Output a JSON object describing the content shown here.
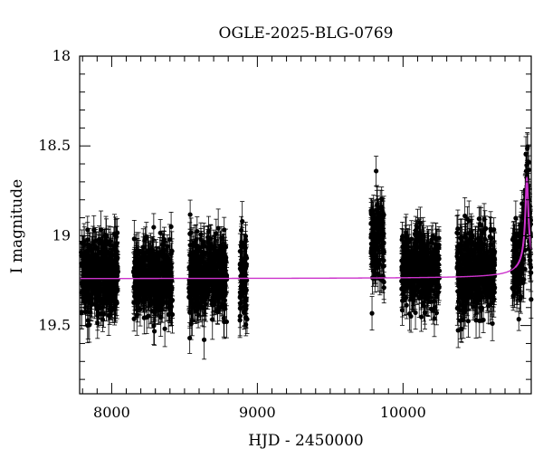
{
  "chart_data": {
    "type": "scatter",
    "title": "OGLE-2025-BLG-0769",
    "xlabel": "HJD - 2450000",
    "ylabel": "I magnitude",
    "xlim": [
      7780,
      10880
    ],
    "ylim": [
      18.0,
      19.88
    ],
    "y_inverted": true,
    "x_ticks": [
      8000,
      9000,
      10000
    ],
    "x_tick_labels": [
      "8000",
      "9000",
      "10000"
    ],
    "y_ticks": [
      18,
      18.5,
      19,
      19.5
    ],
    "y_tick_labels": [
      "18",
      "18.5",
      "19",
      "19.5"
    ],
    "grid": false,
    "colors": {
      "points": "#000000",
      "model": "#cc33cc"
    },
    "observing_seasons": [
      {
        "x_range": [
          7790,
          8045
        ],
        "mag_mean": 19.22,
        "mag_spread": 0.19
      },
      {
        "x_range": [
          8150,
          8420
        ],
        "mag_mean": 19.24,
        "mag_spread": 0.19
      },
      {
        "x_range": [
          8530,
          8790
        ],
        "mag_mean": 19.23,
        "mag_spread": 0.19
      },
      {
        "x_range": [
          8880,
          8930
        ],
        "mag_mean": 19.23,
        "mag_spread": 0.22
      },
      {
        "x_range": [
          9780,
          9870
        ],
        "mag_mean": 19.02,
        "mag_spread": 0.22
      },
      {
        "x_range": [
          9990,
          10250
        ],
        "mag_mean": 19.18,
        "mag_spread": 0.18
      },
      {
        "x_range": [
          10370,
          10630
        ],
        "mag_mean": 19.2,
        "mag_spread": 0.2
      },
      {
        "x_range": [
          10750,
          10880
        ],
        "mag_mean": 19.15,
        "mag_spread": 0.18
      }
    ],
    "typical_error": 0.085,
    "model": {
      "baseline_mag": 19.24,
      "peak_time": 10850,
      "peak_mag": 18.68,
      "width_days": 16
    }
  }
}
